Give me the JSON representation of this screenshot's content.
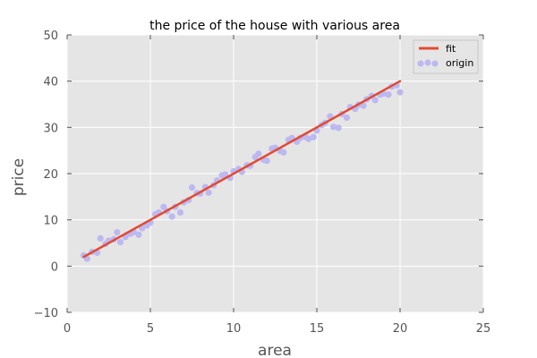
{
  "chart_data": {
    "type": "scatter",
    "title": "the price of the house with various area",
    "xlabel": "area",
    "ylabel": "price",
    "xlim": [
      0,
      25
    ],
    "ylim": [
      -10,
      50
    ],
    "xticks": [
      "0",
      "5",
      "10",
      "15",
      "20",
      "25"
    ],
    "yticks": [
      "−10",
      "0",
      "10",
      "20",
      "30",
      "40",
      "50"
    ],
    "grid": true,
    "legend_position": "top-right",
    "series": [
      {
        "name": "fit",
        "kind": "line",
        "color": "#e24a33",
        "x": [
          1,
          20
        ],
        "y": [
          2,
          40
        ]
      },
      {
        "name": "origin",
        "kind": "scatter",
        "color": "#bcb8f0",
        "x": [
          1.0,
          1.2,
          1.5,
          1.8,
          2.0,
          2.3,
          2.5,
          2.8,
          3.0,
          3.2,
          3.5,
          3.8,
          4.0,
          4.3,
          4.5,
          4.8,
          5.0,
          5.3,
          5.5,
          5.8,
          6.0,
          6.3,
          6.5,
          6.8,
          7.0,
          7.3,
          7.5,
          7.8,
          8.0,
          8.3,
          8.5,
          8.8,
          9.0,
          9.3,
          9.5,
          9.8,
          10.0,
          10.3,
          10.5,
          10.8,
          11.0,
          11.3,
          11.5,
          11.8,
          12.0,
          12.3,
          12.5,
          12.8,
          13.0,
          13.3,
          13.5,
          13.8,
          14.0,
          14.3,
          14.5,
          14.8,
          15.0,
          15.3,
          15.5,
          15.8,
          16.0,
          16.3,
          16.5,
          16.8,
          17.0,
          17.3,
          17.5,
          17.8,
          18.0,
          18.3,
          18.5,
          18.8,
          19.0,
          19.3,
          19.5,
          19.8,
          20.0
        ],
        "y": [
          2.3,
          1.6,
          3.1,
          2.9,
          6.0,
          4.8,
          5.5,
          5.8,
          7.3,
          5.2,
          6.3,
          7.0,
          7.4,
          6.8,
          8.2,
          8.8,
          9.4,
          11.2,
          11.6,
          12.8,
          11.9,
          10.7,
          12.8,
          11.6,
          13.8,
          14.3,
          17.0,
          15.8,
          15.7,
          17.1,
          15.9,
          17.5,
          18.5,
          19.6,
          19.8,
          19.1,
          20.5,
          21.0,
          20.4,
          21.8,
          21.7,
          23.6,
          24.3,
          23.0,
          22.8,
          25.4,
          25.6,
          24.9,
          24.6,
          27.3,
          27.7,
          26.9,
          27.7,
          28.0,
          27.5,
          27.9,
          29.3,
          30.5,
          31.0,
          32.4,
          30.1,
          29.9,
          32.9,
          32.1,
          34.4,
          34.0,
          34.9,
          34.7,
          36.1,
          36.8,
          35.9,
          37.1,
          37.3,
          37.1,
          38.8,
          39.1,
          37.6
        ]
      }
    ]
  }
}
